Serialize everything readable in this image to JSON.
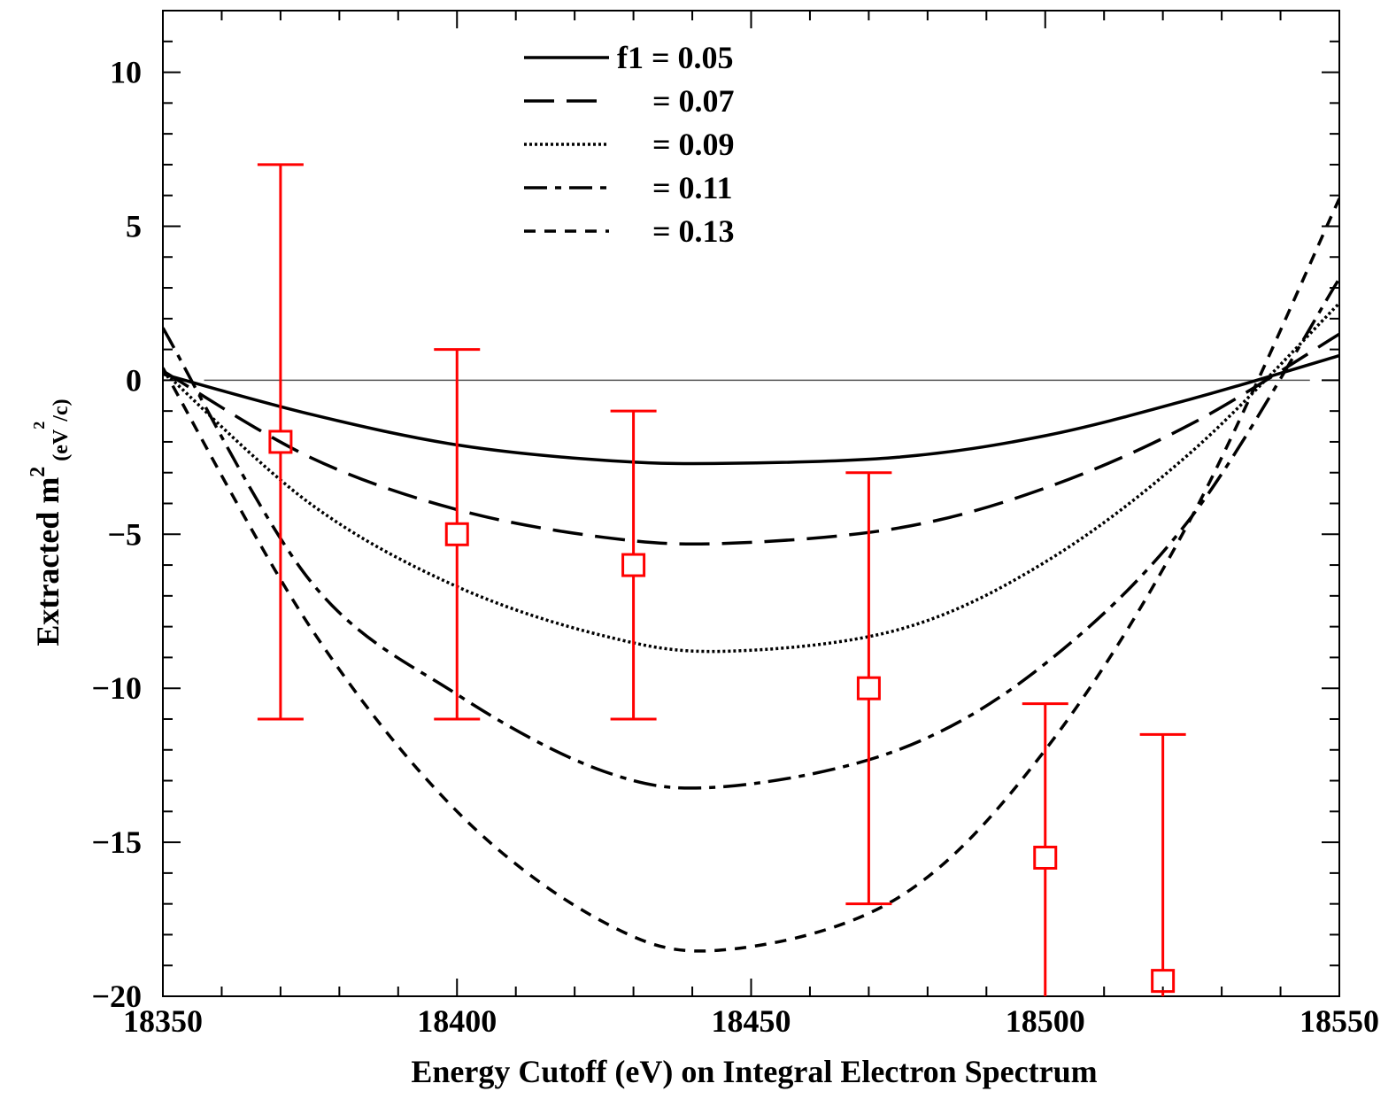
{
  "chart_data": {
    "type": "line",
    "xlabel": "Energy Cutoff (eV) on Integral Electron Spectrum",
    "ylabel_main": "Extracted m",
    "ylabel_sup": "2",
    "ylabel_unit_base": "(eV",
    "ylabel_unit_sup": "2",
    "ylabel_unit_end": "/c)",
    "xlim": [
      18350,
      18550
    ],
    "ylim": [
      -20,
      12
    ],
    "x_ticks": [
      18350,
      18400,
      18450,
      18500,
      18550
    ],
    "x_tick_labels": [
      "18350",
      "18400",
      "18450",
      "18500",
      "18550"
    ],
    "y_ticks": [
      10,
      5,
      0,
      -5,
      -10,
      -15,
      -20
    ],
    "y_tick_labels": [
      "10",
      "5",
      "0",
      "−5",
      "−10",
      "−15",
      "−20"
    ],
    "legend_position": "top-center",
    "legend": [
      {
        "label": "f1 = 0.05",
        "style": "solid"
      },
      {
        "label": "= 0.07",
        "style": "long-dash"
      },
      {
        "label": "= 0.09",
        "style": "dotted"
      },
      {
        "label": "= 0.11",
        "style": "dash-dot"
      },
      {
        "label": "= 0.13",
        "style": "short-dash"
      }
    ],
    "zero_line": {
      "y": 0,
      "x_range": [
        18357,
        18545
      ]
    },
    "curves": [
      {
        "f1": 0.05,
        "style": "solid",
        "x": [
          18350,
          18375,
          18400,
          18425,
          18445,
          18475,
          18500,
          18525,
          18550
        ],
        "y": [
          0.2,
          -1.1,
          -2.1,
          -2.6,
          -2.7,
          -2.5,
          -1.8,
          -0.6,
          0.8
        ]
      },
      {
        "f1": 0.07,
        "style": "long-dash",
        "x": [
          18350,
          18375,
          18400,
          18425,
          18445,
          18475,
          18500,
          18525,
          18550
        ],
        "y": [
          0.3,
          -2.5,
          -4.2,
          -5.1,
          -5.3,
          -4.8,
          -3.5,
          -1.4,
          1.5
        ]
      },
      {
        "f1": 0.09,
        "style": "dotted",
        "x": [
          18350,
          18375,
          18400,
          18425,
          18445,
          18475,
          18500,
          18525,
          18550
        ],
        "y": [
          0.3,
          -4.0,
          -6.7,
          -8.3,
          -8.8,
          -8.1,
          -5.9,
          -2.3,
          2.5
        ]
      },
      {
        "f1": 0.11,
        "style": "dash-dot",
        "x": [
          18350,
          18375,
          18400,
          18425,
          18445,
          18475,
          18500,
          18525,
          18550
        ],
        "y": [
          1.7,
          -6.5,
          -10.2,
          -12.7,
          -13.2,
          -12.0,
          -9.2,
          -4.4,
          3.3
        ]
      },
      {
        "f1": 0.13,
        "style": "short-dash",
        "x": [
          18350,
          18375,
          18400,
          18425,
          18445,
          18475,
          18500,
          18525,
          18550
        ],
        "y": [
          0.4,
          -8.0,
          -14.0,
          -17.6,
          -18.5,
          -16.8,
          -12.0,
          -4.4,
          5.9
        ]
      }
    ],
    "points": [
      {
        "x": 18370,
        "y": -2.0,
        "y_low": -11.0,
        "y_high": 7.0
      },
      {
        "x": 18400,
        "y": -5.0,
        "y_low": -11.0,
        "y_high": 1.0
      },
      {
        "x": 18430,
        "y": -6.0,
        "y_low": -11.0,
        "y_high": -1.0
      },
      {
        "x": 18470,
        "y": -10.0,
        "y_low": -17.0,
        "y_high": -3.0
      },
      {
        "x": 18500,
        "y": -15.5,
        "y_low": -20.0,
        "y_high": -10.5
      },
      {
        "x": 18520,
        "y": -19.5,
        "y_low": -20.0,
        "y_high": -11.5
      }
    ],
    "colors": {
      "curves": "#000000",
      "points": "#ff0000",
      "zero_line": "#555555"
    }
  }
}
